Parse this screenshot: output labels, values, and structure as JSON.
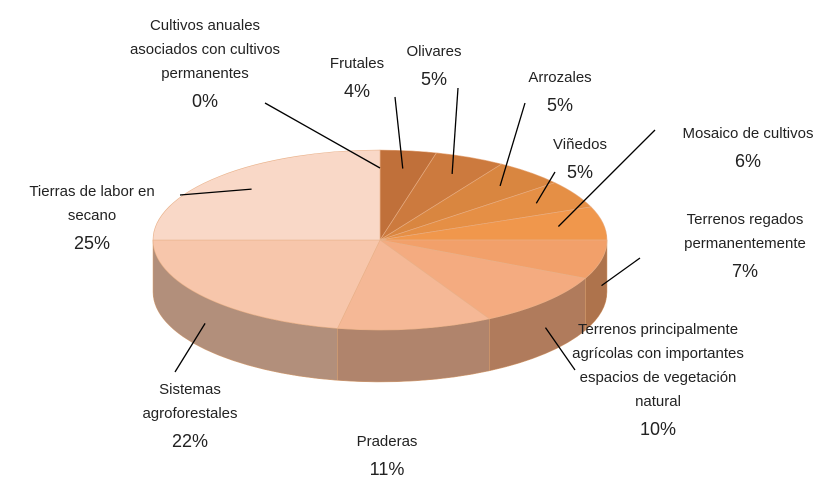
{
  "chart_data": {
    "type": "pie3d",
    "categories": [
      "Cultivos anuales asociados con cultivos permanentes",
      "Frutales",
      "Olivares",
      "Arrozales",
      "Viñedos",
      "Mosaico de cultivos",
      "Terrenos regados permanentemente",
      "Terrenos principalmente agrícolas con importantes espacios de vegetación natural",
      "Praderas",
      "Sistemas agroforestales",
      "Tierras de labor en secano"
    ],
    "values": [
      0,
      4,
      5,
      5,
      5,
      6,
      7,
      10,
      11,
      22,
      25
    ],
    "value_labels": [
      "0%",
      "4%",
      "5%",
      "5%",
      "5%",
      "6%",
      "7%",
      "10%",
      "11%",
      "22%",
      "25%"
    ],
    "colors": [
      "#b8652f",
      "#c0703a",
      "#cc7a3e",
      "#d98640",
      "#e58f45",
      "#f0974c",
      "#f2a06a",
      "#f4ab80",
      "#f5b896",
      "#f7c6ab",
      "#f9d8c7"
    ]
  }
}
